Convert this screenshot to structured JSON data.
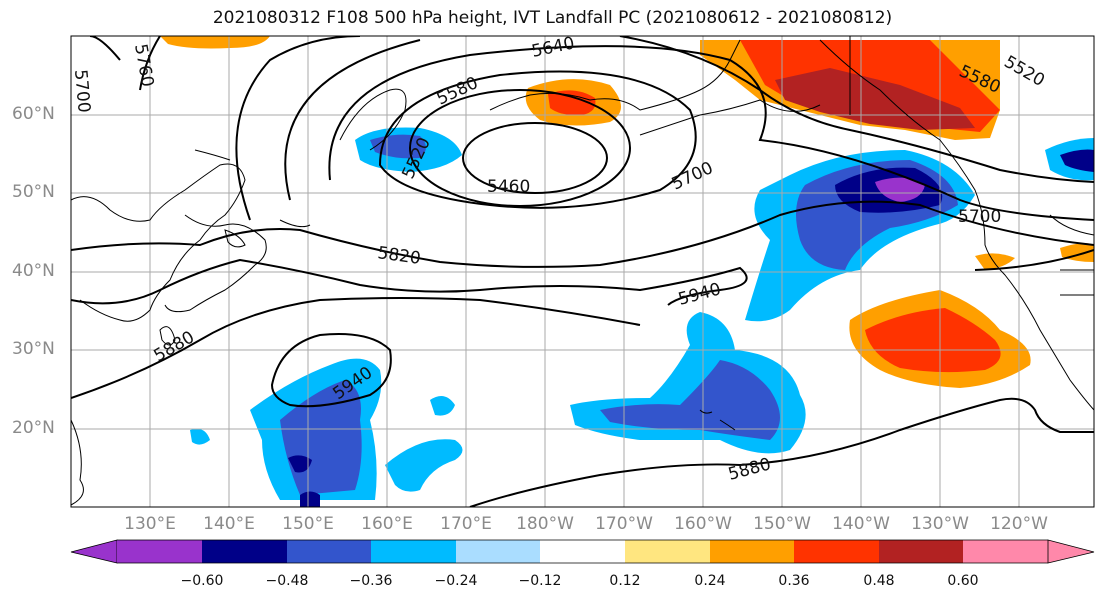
{
  "title": "2021080312 F108 500 hPa height, IVT Landfall PC (2021080612 - 2021080812)",
  "lat_labels": [
    "60°N",
    "50°N",
    "40°N",
    "30°N",
    "20°N"
  ],
  "lon_labels": [
    "130°E",
    "140°E",
    "150°E",
    "160°E",
    "170°E",
    "180°W",
    "170°W",
    "160°W",
    "150°W",
    "140°W",
    "130°W",
    "120°W"
  ],
  "colorbar": {
    "ticks": [
      "−0.60",
      "−0.48",
      "−0.36",
      "−0.24",
      "−0.12",
      "0.12",
      "0.24",
      "0.36",
      "0.48",
      "0.60"
    ],
    "colors": [
      "#9933cc",
      "#000088",
      "#3355cc",
      "#00bbff",
      "#aaddff",
      "#ffffff",
      "#ffe680",
      "#ff9f00",
      "#ff3300",
      "#b22222",
      "#ff88aa"
    ]
  },
  "contour_labels": [
    "5640",
    "5580",
    "5520",
    "5460",
    "5700",
    "5760",
    "5700",
    "5820",
    "5940",
    "5880",
    "5940",
    "5880",
    "5580",
    "5520",
    "5700"
  ]
}
